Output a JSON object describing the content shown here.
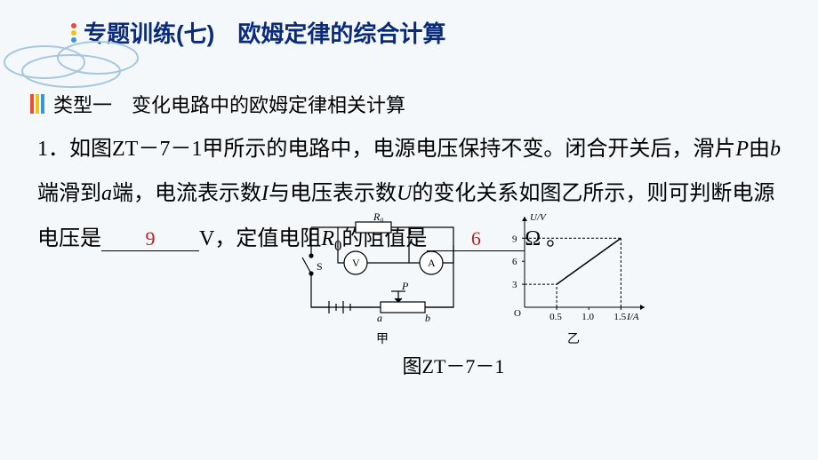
{
  "title": {
    "text": "专题训练(七)　欧姆定律的综合计算",
    "color": "#0a2b7a",
    "bullets": [
      "#e74c3c",
      "#f1c40f",
      "#3498db"
    ]
  },
  "section": {
    "label": "类型一　变化电路中的欧姆定律相关计算",
    "bars": [
      "#e74c3c",
      "#f1c40f",
      "#3498db"
    ]
  },
  "question": {
    "prefix": "1．如图ZT－7－1甲所示的电路中，电源电压保持不变。闭合开关后，滑片",
    "p": "P",
    "seg2": "由",
    "b": "b",
    "seg3": "端滑到",
    "a": "a",
    "seg4": "端，电流表示数",
    "I": "I",
    "seg5": "与电压表示数",
    "U": "U",
    "seg6": "的变化关系如图乙所示，则可判断电源电压是",
    "blank1_value": "9",
    "seg7": "V，定值电阻",
    "R": "R",
    "Rsub": "0",
    "seg8": "的阻值是",
    "blank2_value": "6",
    "seg9": "Ω 。"
  },
  "circuit": {
    "label": "甲",
    "R0": "R₀",
    "V": "V",
    "A": "A",
    "S": "S",
    "P": "P",
    "a": "a",
    "b": "b",
    "stroke": "#000000"
  },
  "graph": {
    "label": "乙",
    "ylabel": "U/V",
    "xlabel": "I/A",
    "yticks": [
      "3",
      "6",
      "9"
    ],
    "xticks": [
      "0.5",
      "1.0",
      "1.5"
    ],
    "origin": "O",
    "line_color": "#000000",
    "xlim": [
      0,
      1.8
    ],
    "ylim": [
      0,
      11
    ],
    "points": [
      [
        0.5,
        3
      ],
      [
        1.5,
        9
      ]
    ],
    "dash": "3,2"
  },
  "figure_caption": "图ZT－7－1",
  "cloud_color": "#a7c7e0"
}
